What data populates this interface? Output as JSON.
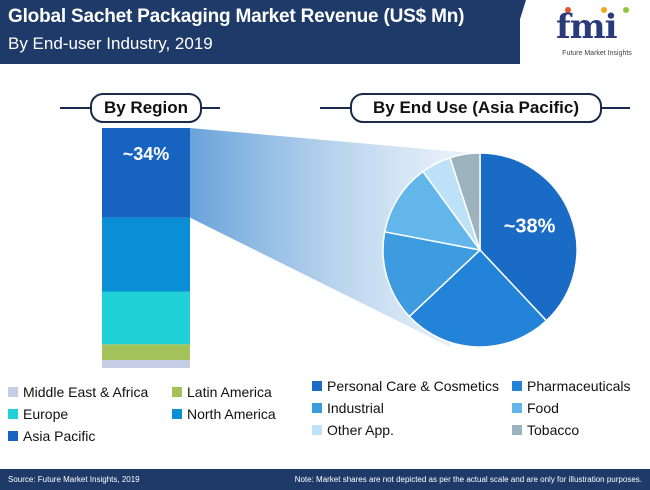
{
  "header": {
    "title": "Global Sachet Packaging Market Revenue (US$ Mn)",
    "subtitle": "By End-user Industry, 2019"
  },
  "logo": {
    "letters": "fmi",
    "tagline": "Future Market Insights"
  },
  "chart_data": [
    {
      "type": "bar",
      "title": "By Region",
      "stacked": true,
      "orientation": "vertical",
      "segments": [
        {
          "name": "Middle East & Africa",
          "value": 3,
          "color": "#c7cde6"
        },
        {
          "name": "Latin America",
          "value": 6,
          "color": "#a3c25a"
        },
        {
          "name": "Europe",
          "value": 20,
          "color": "#1fd1d6"
        },
        {
          "name": "North America",
          "value": 28,
          "color": "#0a8fd6"
        },
        {
          "name": "Asia Pacific",
          "value": 34,
          "color": "#1763c2"
        }
      ],
      "annotations": [
        {
          "segment": "Asia Pacific",
          "label": "~34%"
        }
      ],
      "legend_placement": "bottom-left"
    },
    {
      "type": "pie",
      "title": "By End Use (Asia Pacific)",
      "slices": [
        {
          "name": "Personal Care & Cosmetics",
          "value": 38,
          "color": "#1a6bc6"
        },
        {
          "name": "Pharmaceuticals",
          "value": 25,
          "color": "#2383d8"
        },
        {
          "name": "Industrial",
          "value": 15,
          "color": "#3d9be0"
        },
        {
          "name": "Food",
          "value": 12,
          "color": "#62b6ea"
        },
        {
          "name": "Other App.",
          "value": 5,
          "color": "#bde2f7"
        },
        {
          "name": "Tobacco",
          "value": 5,
          "color": "#9cb3bd"
        }
      ],
      "annotations": [
        {
          "slice": "Personal Care & Cosmetics",
          "label": "~38%"
        }
      ],
      "legend_placement": "bottom-right"
    }
  ],
  "footer": {
    "source": "Source: Future Market Insights, 2019",
    "note": "Note: Market shares are not depicted as per the actual scale and are only for illustration purposes."
  }
}
